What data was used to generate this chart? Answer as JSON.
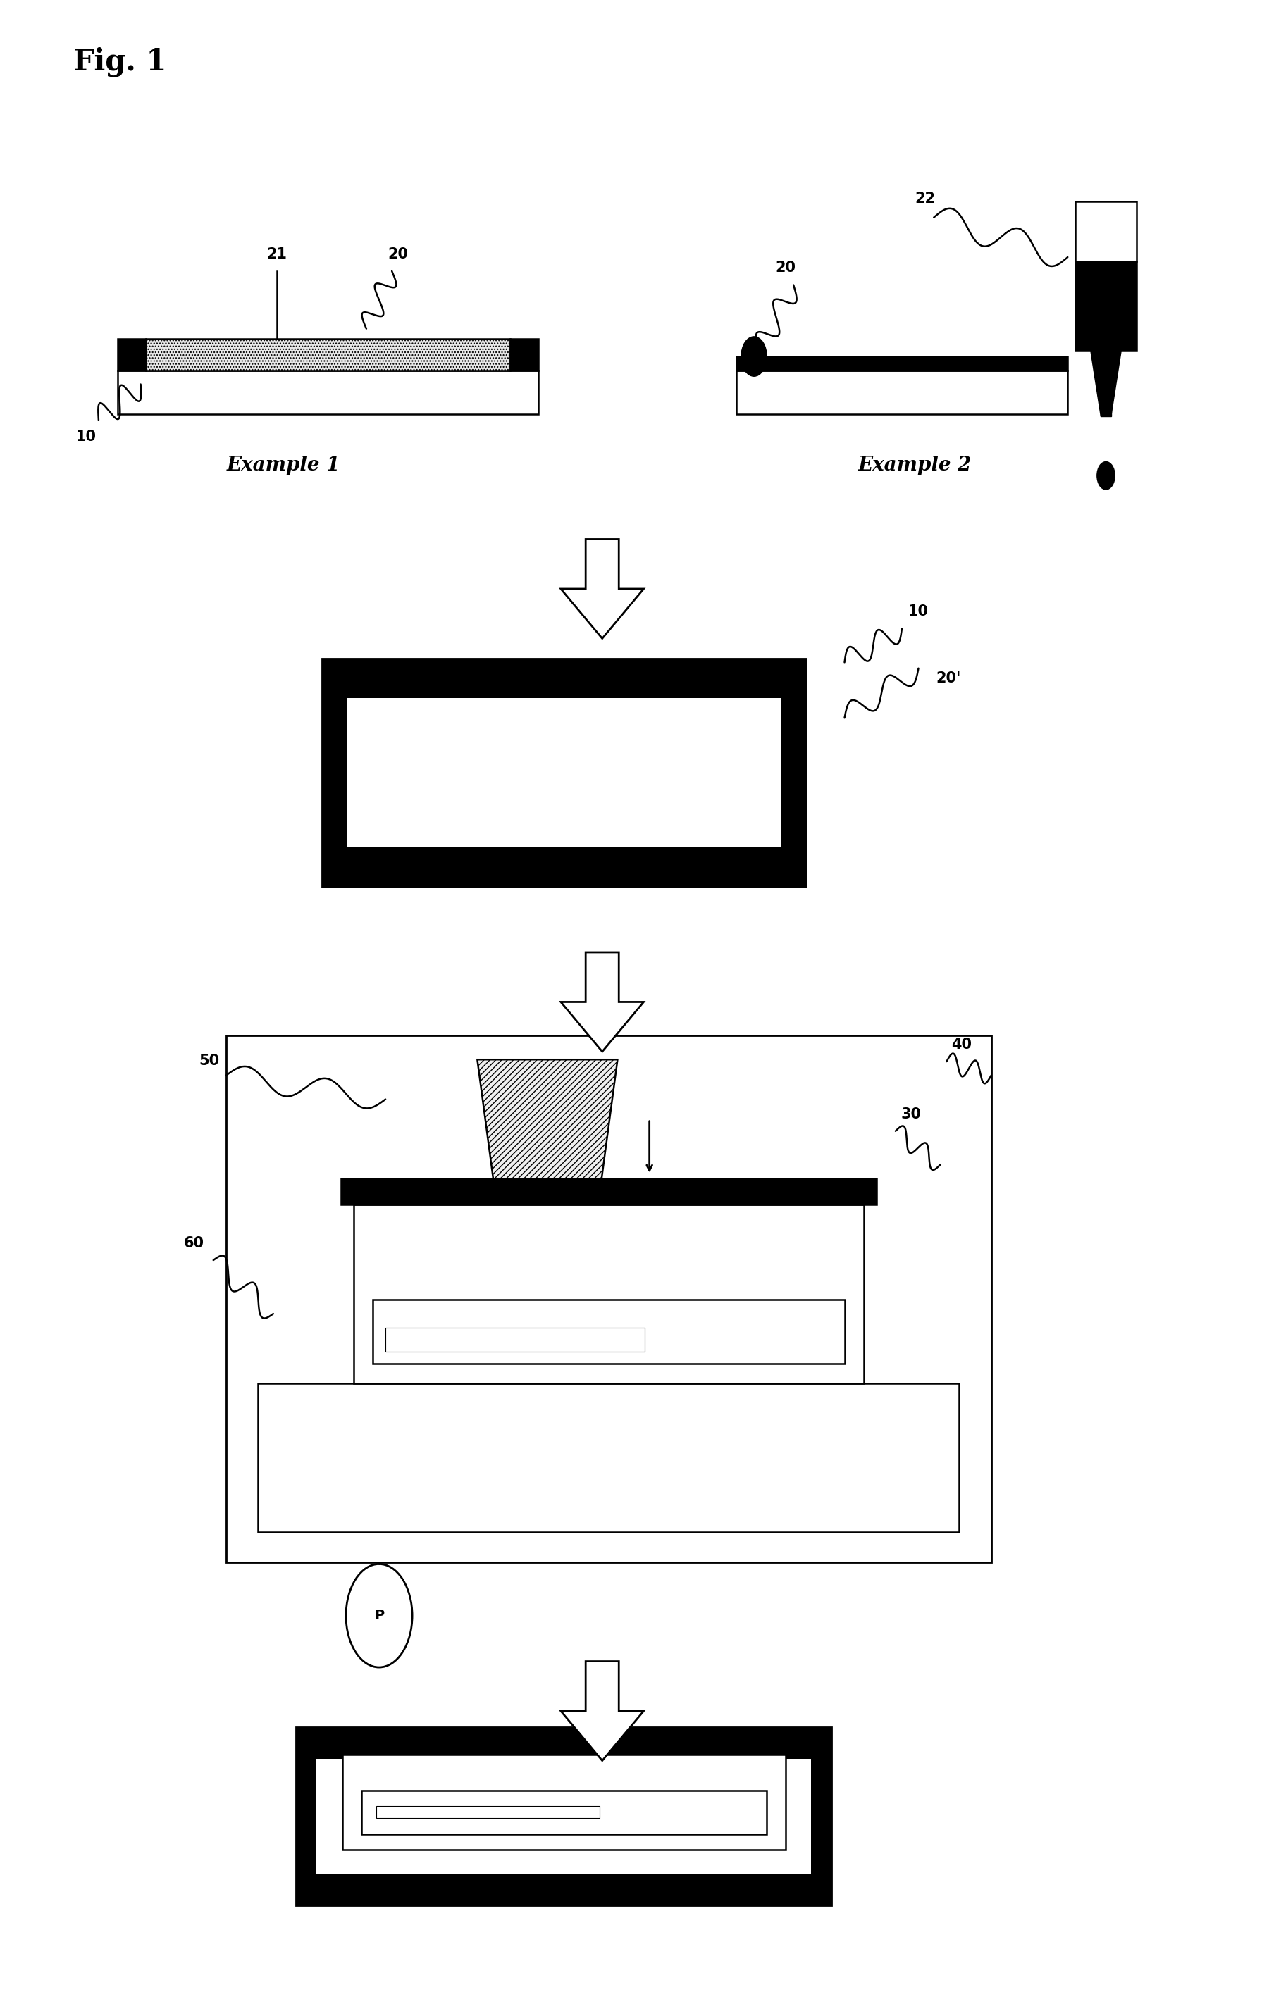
{
  "title": "Fig. 1",
  "bg_color": "#ffffff",
  "fig_width": 18.18,
  "fig_height": 28.28,
  "example1_label": "Example 1",
  "example2_label": "Example 2"
}
